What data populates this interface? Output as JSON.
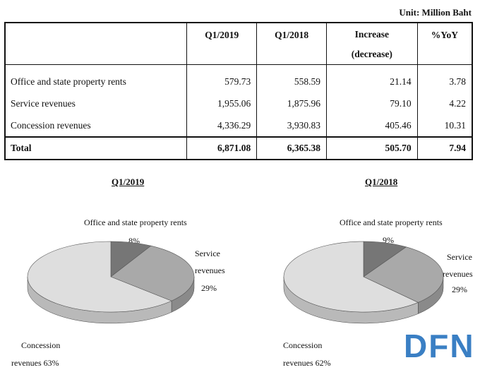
{
  "unit": "Unit: Million Baht",
  "table": {
    "headers": {
      "label": "",
      "q1_2019": "Q1/2019",
      "q1_2018": "Q1/2018",
      "increase_line1": "Increase",
      "increase_line2": "(decrease)",
      "yoy": "%YoY"
    },
    "rows": [
      {
        "label": "Office and state property rents",
        "q1_2019": "579.73",
        "q1_2018": "558.59",
        "increase": "21.14",
        "yoy": "3.78"
      },
      {
        "label": "Service revenues",
        "q1_2019": "1,955.06",
        "q1_2018": "1,875.96",
        "increase": "79.10",
        "yoy": "4.22"
      },
      {
        "label": "Concession revenues",
        "q1_2019": "4,336.29",
        "q1_2018": "3,930.83",
        "increase": "405.46",
        "yoy": "10.31"
      }
    ],
    "total": {
      "label": "Total",
      "q1_2019": "6,871.08",
      "q1_2018": "6,365.38",
      "increase": "505.70",
      "yoy": "7.94"
    }
  },
  "chart_data": [
    {
      "type": "pie",
      "title": "Q1/2019",
      "labels": [
        "Office and state property rents",
        "Service revenues",
        "Concession revenues"
      ],
      "values": [
        8,
        29,
        63
      ],
      "label_text": {
        "office_name": "Office and state property rents",
        "office_pct": "8%",
        "service_line1": "Service",
        "service_line2": "revenues",
        "service_pct": "29%",
        "concession_line1": "Concession",
        "concession_line2": "revenues 63%"
      },
      "colors": [
        "#767676",
        "#a9a9a9",
        "#dedede"
      ]
    },
    {
      "type": "pie",
      "title": "Q1/2018",
      "labels": [
        "Office and state property rents",
        "Service revenues",
        "Concession revenues"
      ],
      "values": [
        9,
        29,
        62
      ],
      "label_text": {
        "office_name": "Office and state property rents",
        "office_pct": "9%",
        "service_line1": "Service",
        "service_line2": "revenues",
        "service_pct": "29%",
        "concession_line1": "Concession",
        "concession_line2": "revenues 62%"
      },
      "colors": [
        "#767676",
        "#a9a9a9",
        "#dedede"
      ]
    }
  ],
  "watermark": {
    "text": "DFN",
    "color": "#3a7fc4"
  }
}
